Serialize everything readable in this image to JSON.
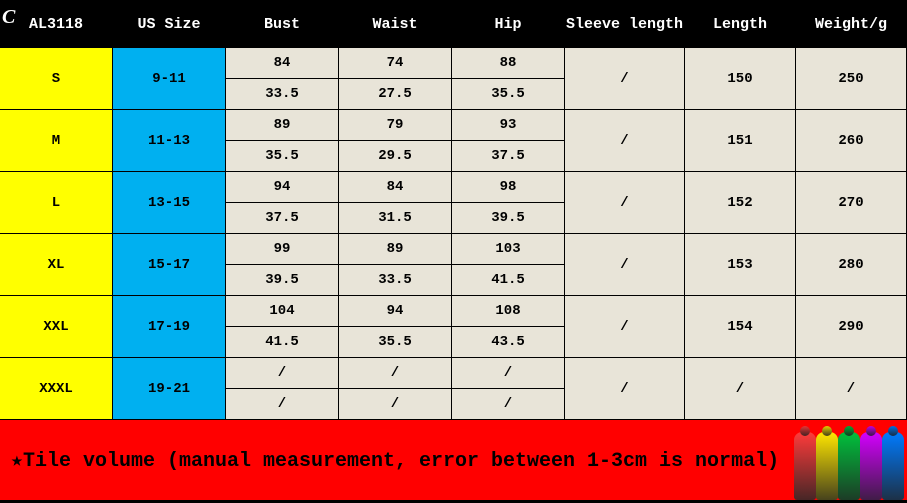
{
  "watermark": "C",
  "header": {
    "code": "AL3118",
    "us_size": "US Size",
    "bust": "Bust",
    "waist": "Waist",
    "hip": "Hip",
    "sleeve": "Sleeve length",
    "length": "Length",
    "weight": "Weight/g"
  },
  "rows": [
    {
      "size": "S",
      "us": "9-11",
      "bust_cm": "84",
      "bust_in": "33.5",
      "waist_cm": "74",
      "waist_in": "27.5",
      "hip_cm": "88",
      "hip_in": "35.5",
      "sleeve": "/",
      "length": "150",
      "weight": "250"
    },
    {
      "size": "M",
      "us": "11-13",
      "bust_cm": "89",
      "bust_in": "35.5",
      "waist_cm": "79",
      "waist_in": "29.5",
      "hip_cm": "93",
      "hip_in": "37.5",
      "sleeve": "/",
      "length": "151",
      "weight": "260"
    },
    {
      "size": "L",
      "us": "13-15",
      "bust_cm": "94",
      "bust_in": "37.5",
      "waist_cm": "84",
      "waist_in": "31.5",
      "hip_cm": "98",
      "hip_in": "39.5",
      "sleeve": "/",
      "length": "152",
      "weight": "270"
    },
    {
      "size": "XL",
      "us": "15-17",
      "bust_cm": "99",
      "bust_in": "39.5",
      "waist_cm": "89",
      "waist_in": "33.5",
      "hip_cm": "103",
      "hip_in": "41.5",
      "sleeve": "/",
      "length": "153",
      "weight": "280"
    },
    {
      "size": "XXL",
      "us": "17-19",
      "bust_cm": "104",
      "bust_in": "41.5",
      "waist_cm": "94",
      "waist_in": "35.5",
      "hip_cm": "108",
      "hip_in": "43.5",
      "sleeve": "/",
      "length": "154",
      "weight": "290"
    },
    {
      "size": "XXXL",
      "us": "19-21",
      "bust_cm": "/",
      "bust_in": "/",
      "waist_cm": "/",
      "waist_in": "/",
      "hip_cm": "/",
      "hip_in": "/",
      "sleeve": "/",
      "length": "/",
      "weight": "/"
    }
  ],
  "footer_note": "★Tile volume (manual measurement, error between 1-3cm is normal)",
  "fig_colors": [
    "#ff3b3b",
    "#ffe600",
    "#00c03c",
    "#d400ff",
    "#007bff"
  ]
}
